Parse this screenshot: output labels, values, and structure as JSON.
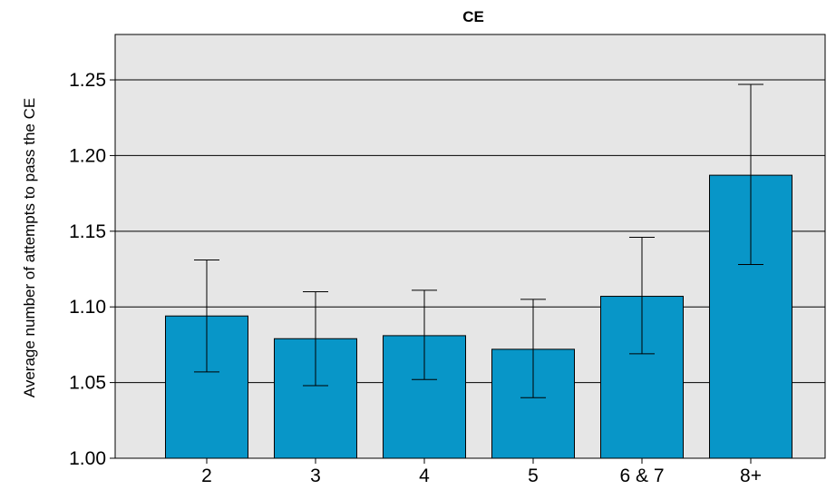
{
  "chart_data": {
    "type": "bar",
    "title": "CE",
    "xlabel": "",
    "ylabel": "Average number of attempts to pass the CE",
    "categories": [
      "2",
      "3",
      "4",
      "5",
      "6 & 7",
      "8+"
    ],
    "values": [
      1.094,
      1.079,
      1.081,
      1.072,
      1.107,
      1.187
    ],
    "error_low": [
      1.057,
      1.048,
      1.052,
      1.04,
      1.069,
      1.128
    ],
    "error_high": [
      1.131,
      1.11,
      1.111,
      1.105,
      1.146,
      1.247
    ],
    "ylim": [
      1.0,
      1.28
    ],
    "yticks": [
      "1.00",
      "1.05",
      "1.10",
      "1.15",
      "1.20",
      "1.25"
    ],
    "ytick_values": [
      1.0,
      1.05,
      1.1,
      1.15,
      1.2,
      1.25
    ],
    "grid": true,
    "colors": {
      "bar": "#0896c8",
      "plot_background": "#e6e6e6",
      "grid": "#000000"
    }
  }
}
